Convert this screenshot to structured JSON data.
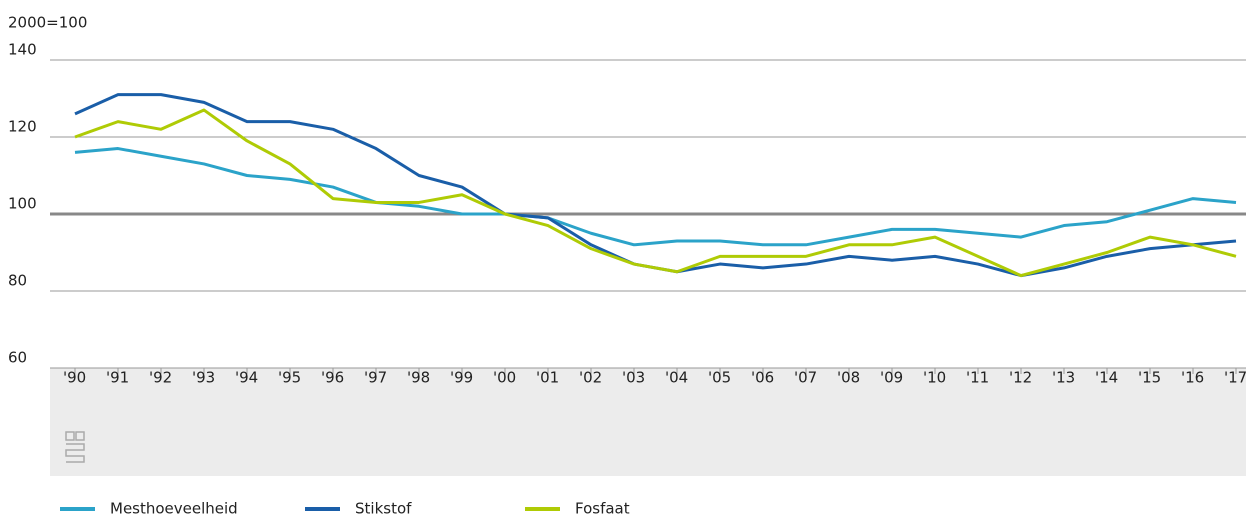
{
  "chart_data": {
    "type": "line",
    "y_label": "2000=100",
    "categories": [
      "'90",
      "'91",
      "'92",
      "'93",
      "'94",
      "'95",
      "'96",
      "'97",
      "'98",
      "'99",
      "'00",
      "'01",
      "'02",
      "'03",
      "'04",
      "'05",
      "'06",
      "'07",
      "'08",
      "'09",
      "'10",
      "'11",
      "'12",
      "'13",
      "'14",
      "'15",
      "'16",
      "'17"
    ],
    "series": [
      {
        "name": "Mesthoeveelheid",
        "color": "#2ba3c9",
        "values": [
          116,
          117,
          115,
          113,
          110,
          109,
          107,
          103,
          102,
          100,
          100,
          99,
          95,
          92,
          93,
          93,
          92,
          92,
          94,
          96,
          96,
          95,
          94,
          97,
          98,
          101,
          104,
          103
        ]
      },
      {
        "name": "Stikstof",
        "color": "#1a5ea8",
        "values": [
          126,
          131,
          131,
          129,
          124,
          124,
          122,
          117,
          110,
          107,
          100,
          99,
          92,
          87,
          85,
          87,
          86,
          87,
          89,
          88,
          89,
          87,
          84,
          86,
          89,
          91,
          92,
          93
        ]
      },
      {
        "name": "Fosfaat",
        "color": "#afcb05",
        "values": [
          120,
          124,
          122,
          127,
          119,
          113,
          104,
          103,
          103,
          105,
          100,
          97,
          91,
          87,
          85,
          89,
          89,
          89,
          92,
          92,
          94,
          89,
          84,
          87,
          90,
          94,
          92,
          89
        ]
      }
    ],
    "ylim": [
      60,
      140
    ],
    "yticks": [
      60,
      80,
      100,
      120,
      140
    ],
    "grid": true,
    "reference_line": 100,
    "legend": "bottom"
  }
}
